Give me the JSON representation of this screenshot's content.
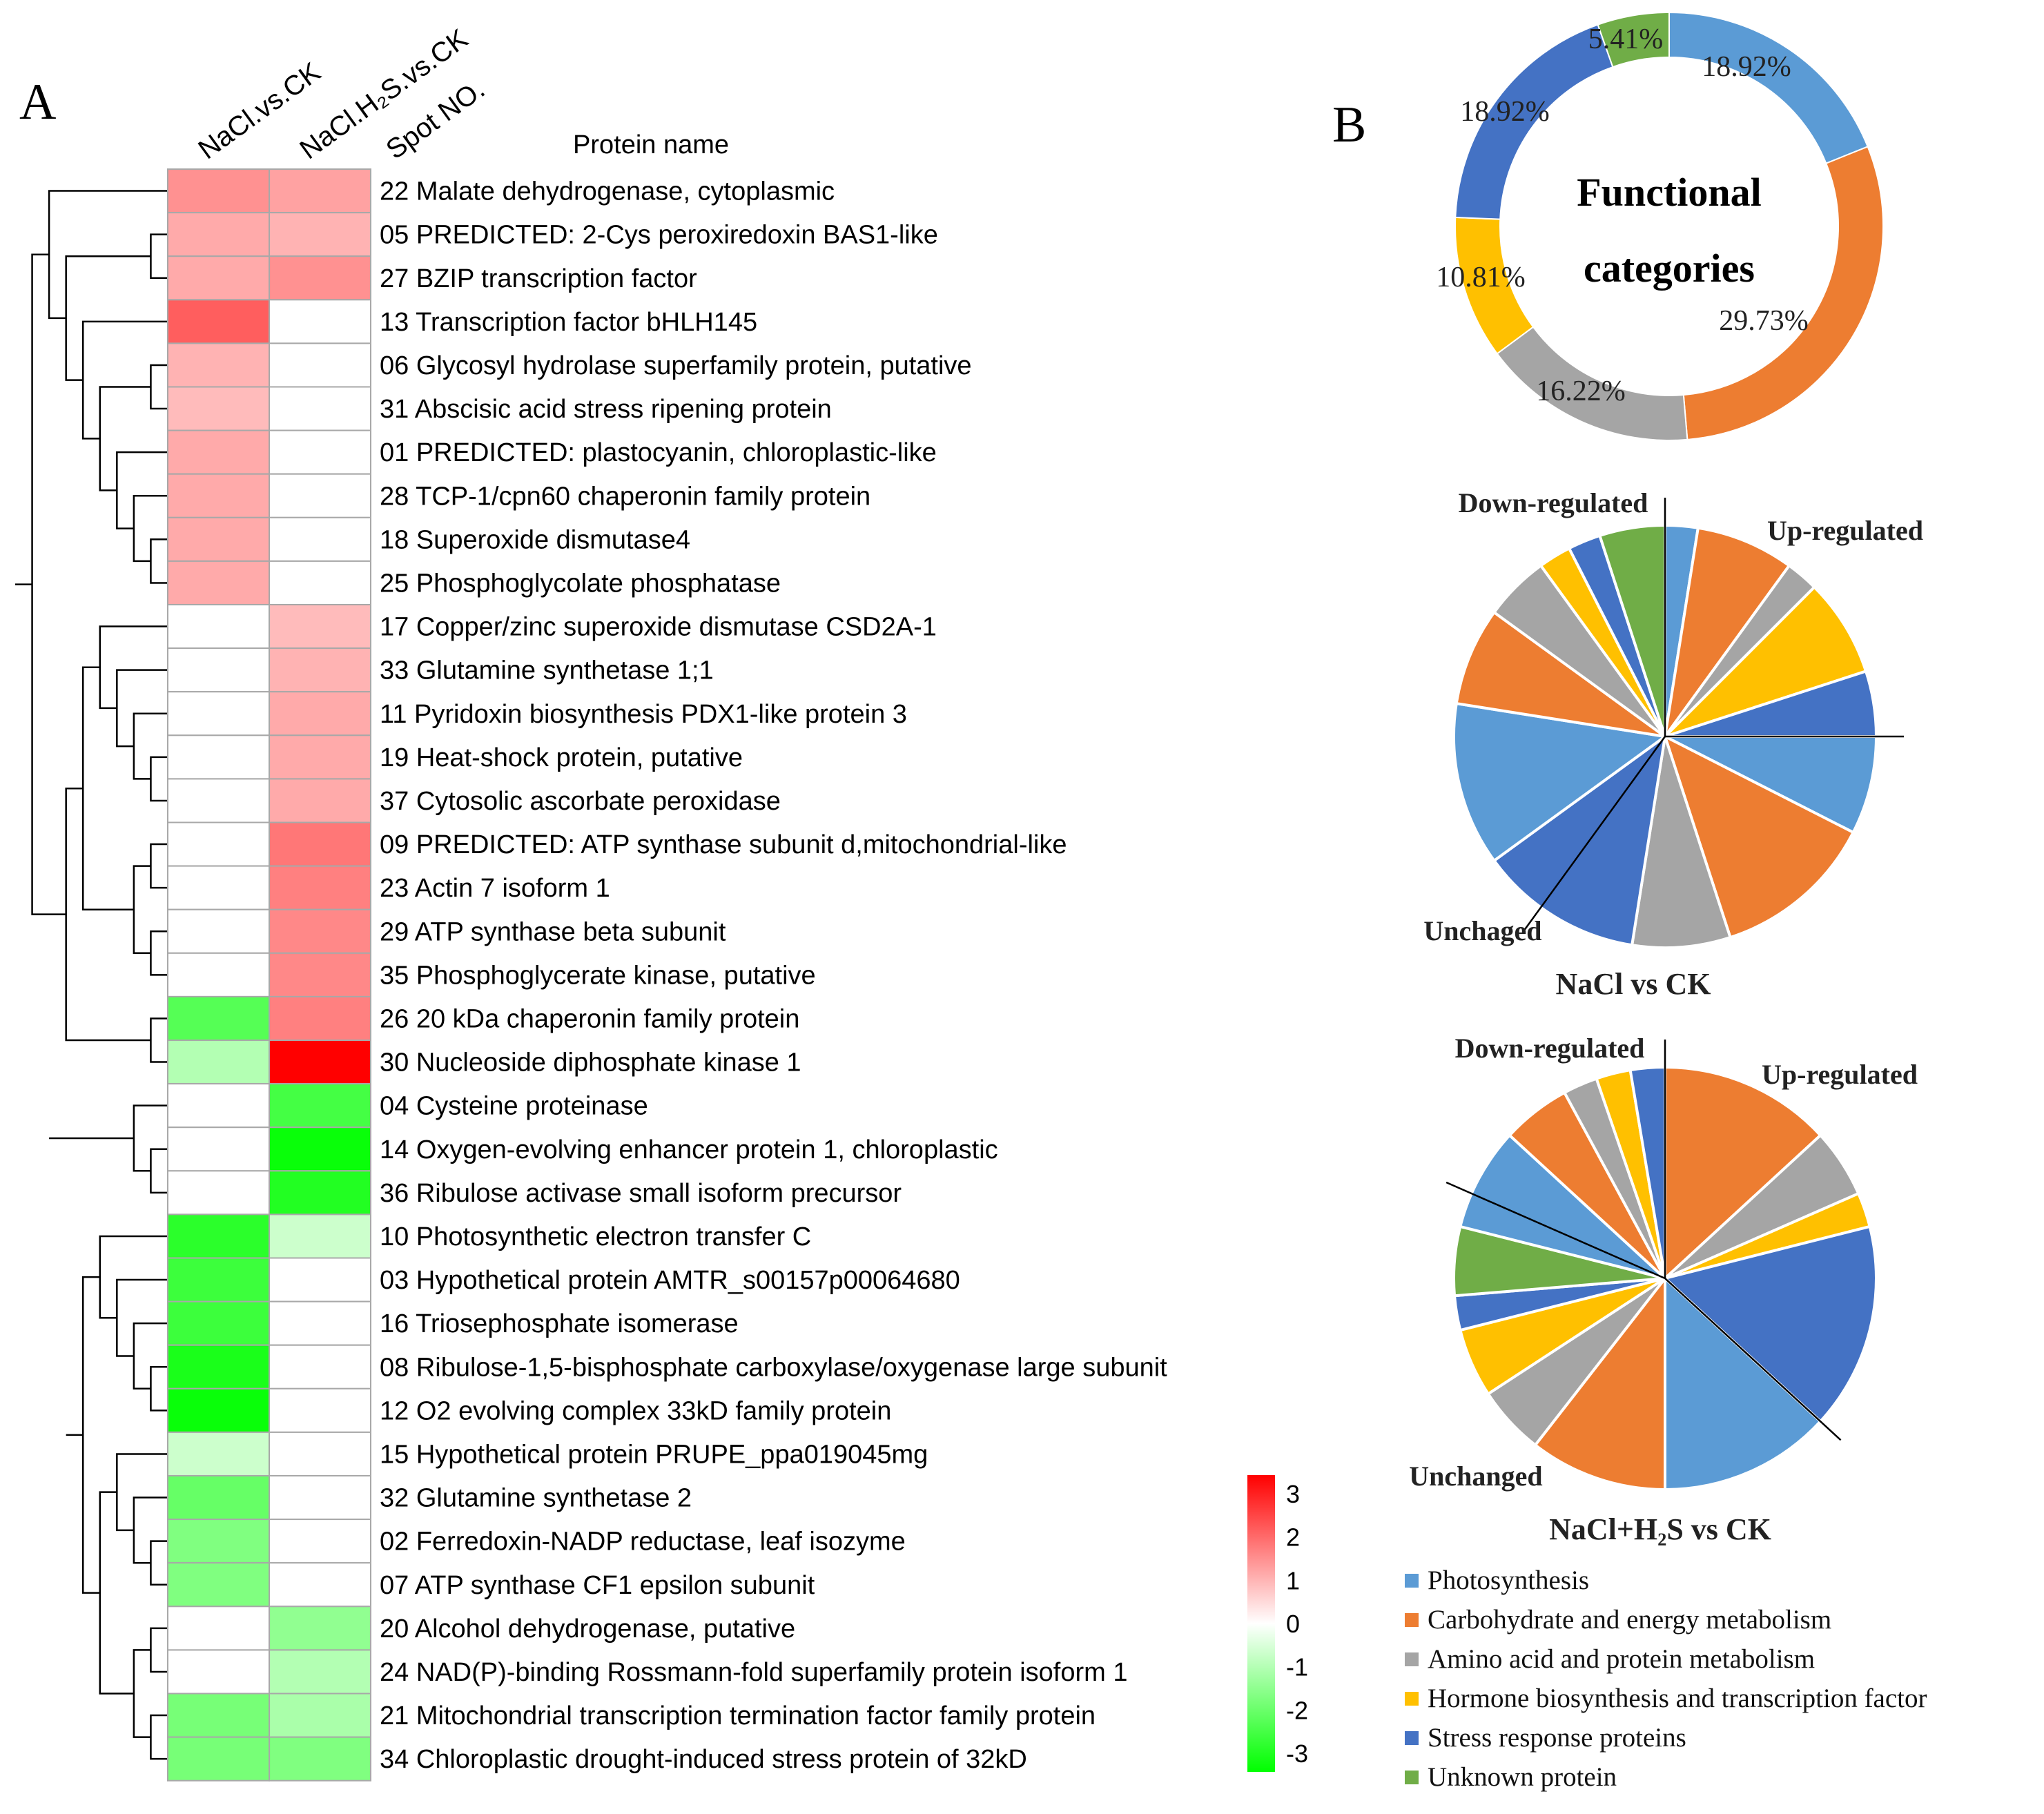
{
  "panel_a": {
    "label": "A",
    "column_headers": [
      "NaCl.vs.CK",
      "NaCl.H₂S.vs.CK",
      "Spot NO."
    ],
    "protein_header": "Protein name",
    "rows": [
      {
        "spot": "22",
        "name": "Malate dehydrogenase, cytoplasmic",
        "nacl": 1.3,
        "h2s": 1.1
      },
      {
        "spot": "05",
        "name": "PREDICTED: 2-Cys peroxiredoxin BAS1-like",
        "nacl": 1.0,
        "h2s": 0.9
      },
      {
        "spot": "27",
        "name": "BZIP transcription factor",
        "nacl": 1.0,
        "h2s": 1.3
      },
      {
        "spot": "13",
        "name": "Transcription factor bHLH145",
        "nacl": 1.9,
        "h2s": 0.0
      },
      {
        "spot": "06",
        "name": "Glycosyl hydrolase superfamily protein, putative",
        "nacl": 0.9,
        "h2s": 0.0
      },
      {
        "spot": "31",
        "name": "Abscisic acid stress ripening protein",
        "nacl": 0.8,
        "h2s": 0.0
      },
      {
        "spot": "01",
        "name": "PREDICTED: plastocyanin, chloroplastic-like",
        "nacl": 1.0,
        "h2s": 0.0
      },
      {
        "spot": "28",
        "name": "TCP-1/cpn60 chaperonin family protein",
        "nacl": 1.0,
        "h2s": 0.0
      },
      {
        "spot": "18",
        "name": "Superoxide dismutase4",
        "nacl": 1.0,
        "h2s": 0.0
      },
      {
        "spot": "25",
        "name": "Phosphoglycolate phosphatase",
        "nacl": 1.0,
        "h2s": 0.0
      },
      {
        "spot": "17",
        "name": "Copper/zinc superoxide dismutase CSD2A-1",
        "nacl": 0.0,
        "h2s": 0.8
      },
      {
        "spot": "33",
        "name": "Glutamine synthetase 1;1",
        "nacl": 0.0,
        "h2s": 0.9
      },
      {
        "spot": "11",
        "name": "Pyridoxin biosynthesis PDX1-like protein 3",
        "nacl": 0.0,
        "h2s": 1.0
      },
      {
        "spot": "19",
        "name": "Heat-shock protein, putative",
        "nacl": 0.0,
        "h2s": 1.0
      },
      {
        "spot": "37",
        "name": "Cytosolic ascorbate peroxidase",
        "nacl": 0.0,
        "h2s": 1.0
      },
      {
        "spot": "09",
        "name": "PREDICTED: ATP synthase subunit d,mitochondrial-like",
        "nacl": 0.0,
        "h2s": 1.6
      },
      {
        "spot": "23",
        "name": "Actin 7 isoform 1",
        "nacl": 0.0,
        "h2s": 1.5
      },
      {
        "spot": "29",
        "name": "ATP synthase beta subunit",
        "nacl": 0.0,
        "h2s": 1.4
      },
      {
        "spot": "35",
        "name": "Phosphoglycerate kinase, putative",
        "nacl": 0.0,
        "h2s": 1.4
      },
      {
        "spot": "26",
        "name": "20 kDa chaperonin family protein",
        "nacl": -2.0,
        "h2s": 1.5
      },
      {
        "spot": "30",
        "name": "Nucleoside diphosphate kinase 1",
        "nacl": -0.9,
        "h2s": 3.0
      },
      {
        "spot": "04",
        "name": "Cysteine proteinase",
        "nacl": 0.0,
        "h2s": -2.2
      },
      {
        "spot": "14",
        "name": "Oxygen-evolving enhancer protein 1, chloroplastic",
        "nacl": 0.0,
        "h2s": -2.9
      },
      {
        "spot": "36",
        "name": "Ribulose activase small isoform precursor",
        "nacl": 0.0,
        "h2s": -2.6
      },
      {
        "spot": "10",
        "name": "Photosynthetic electron transfer C",
        "nacl": -2.5,
        "h2s": -0.6
      },
      {
        "spot": "03",
        "name": "Hypothetical protein AMTR_s00157p00064680",
        "nacl": -2.3,
        "h2s": 0.0
      },
      {
        "spot": "16",
        "name": "Triosephosphate isomerase",
        "nacl": -2.3,
        "h2s": 0.0
      },
      {
        "spot": "08",
        "name": "Ribulose-1,5-bisphosphate carboxylase/oxygenase large subunit",
        "nacl": -2.7,
        "h2s": 0.0
      },
      {
        "spot": "12",
        "name": "O2 evolving complex 33kD family protein",
        "nacl": -2.9,
        "h2s": 0.0
      },
      {
        "spot": "15",
        "name": "Hypothetical protein PRUPE_ppa019045mg",
        "nacl": -0.6,
        "h2s": 0.0
      },
      {
        "spot": "32",
        "name": "Glutamine synthetase 2",
        "nacl": -1.8,
        "h2s": 0.0
      },
      {
        "spot": "02",
        "name": "Ferredoxin-NADP reductase, leaf isozyme",
        "nacl": -1.5,
        "h2s": 0.0
      },
      {
        "spot": "07",
        "name": "ATP synthase CF1 epsilon subunit",
        "nacl": -1.5,
        "h2s": 0.0
      },
      {
        "spot": "20",
        "name": "Alcohol dehydrogenase, putative",
        "nacl": 0.0,
        "h2s": -1.3
      },
      {
        "spot": "24",
        "name": "NAD(P)-binding Rossmann-fold superfamily protein isoform 1",
        "nacl": 0.0,
        "h2s": -0.9
      },
      {
        "spot": "21",
        "name": "Mitochondrial transcription termination factor family protein",
        "nacl": -1.6,
        "h2s": -1.0
      },
      {
        "spot": "34",
        "name": "Chloroplastic drought-induced stress protein of 32kD",
        "nacl": -1.6,
        "h2s": -1.5
      }
    ],
    "colorbar": {
      "ticks": [
        "3",
        "2",
        "1",
        "0",
        "-1",
        "-2",
        "-3"
      ],
      "min": -3,
      "max": 3
    },
    "colors": {
      "high": "#ff0000",
      "mid": "#ffffff",
      "low": "#00ff00",
      "grid": "#a8a8a8"
    }
  },
  "panel_b": {
    "label": "B",
    "categories": [
      {
        "name": "Photosynthesis",
        "color": "#5b9bd5"
      },
      {
        "name": "Carbohydrate and energy metabolism",
        "color": "#ed7d31"
      },
      {
        "name": "Amino acid and protein metabolism",
        "color": "#a5a5a5"
      },
      {
        "name": "Hormone biosynthesis and transcription factor",
        "color": "#ffc000"
      },
      {
        "name": "Stress response proteins",
        "color": "#4472c4"
      },
      {
        "name": "Unknown protein",
        "color": "#70ad47"
      }
    ],
    "donut": {
      "center_line1": "Functional",
      "center_line2": "categories",
      "slices": [
        {
          "category": 0,
          "percent": 18.92,
          "label": "18.92%"
        },
        {
          "category": 1,
          "percent": 29.73,
          "label": "29.73%"
        },
        {
          "category": 2,
          "percent": 16.22,
          "label": "16.22%"
        },
        {
          "category": 3,
          "percent": 10.81,
          "label": "10.81%"
        },
        {
          "category": 4,
          "percent": 18.92,
          "label": "18.92%"
        },
        {
          "category": 5,
          "percent": 5.41,
          "label": "5.41%"
        }
      ]
    },
    "pie1": {
      "title": "NaCl vs CK",
      "up_label": "Up-regulated",
      "down_label": "Down-regulated",
      "unchanged_label": "Unchaged",
      "slices": [
        {
          "category": 0,
          "value": 1
        },
        {
          "category": 1,
          "value": 3
        },
        {
          "category": 2,
          "value": 1
        },
        {
          "category": 3,
          "value": 3
        },
        {
          "category": 4,
          "value": 2
        },
        {
          "category": 0,
          "value": 3
        },
        {
          "category": 1,
          "value": 5
        },
        {
          "category": 2,
          "value": 3
        },
        {
          "category": 4,
          "value": 5
        },
        {
          "category": 0,
          "value": 5
        },
        {
          "category": 1,
          "value": 3
        },
        {
          "category": 2,
          "value": 2
        },
        {
          "category": 3,
          "value": 1
        },
        {
          "category": 4,
          "value": 1
        },
        {
          "category": 5,
          "value": 2
        }
      ],
      "boundaries": [
        0,
        10,
        24
      ]
    },
    "pie2": {
      "title": "NaCl+H₂S vs CK",
      "up_label": "Up-regulated",
      "down_label": "Down-regulated",
      "unchanged_label": "Unchanged",
      "slices": [
        {
          "category": 1,
          "value": 5
        },
        {
          "category": 2,
          "value": 2
        },
        {
          "category": 3,
          "value": 1
        },
        {
          "category": 4,
          "value": 6
        },
        {
          "category": 0,
          "value": 5
        },
        {
          "category": 1,
          "value": 4
        },
        {
          "category": 2,
          "value": 2
        },
        {
          "category": 3,
          "value": 2
        },
        {
          "category": 4,
          "value": 1
        },
        {
          "category": 5,
          "value": 2
        },
        {
          "category": 0,
          "value": 3
        },
        {
          "category": 1,
          "value": 2
        },
        {
          "category": 2,
          "value": 1
        },
        {
          "category": 3,
          "value": 1
        },
        {
          "category": 4,
          "value": 1
        }
      ],
      "boundaries": [
        0,
        14,
        31
      ]
    }
  }
}
